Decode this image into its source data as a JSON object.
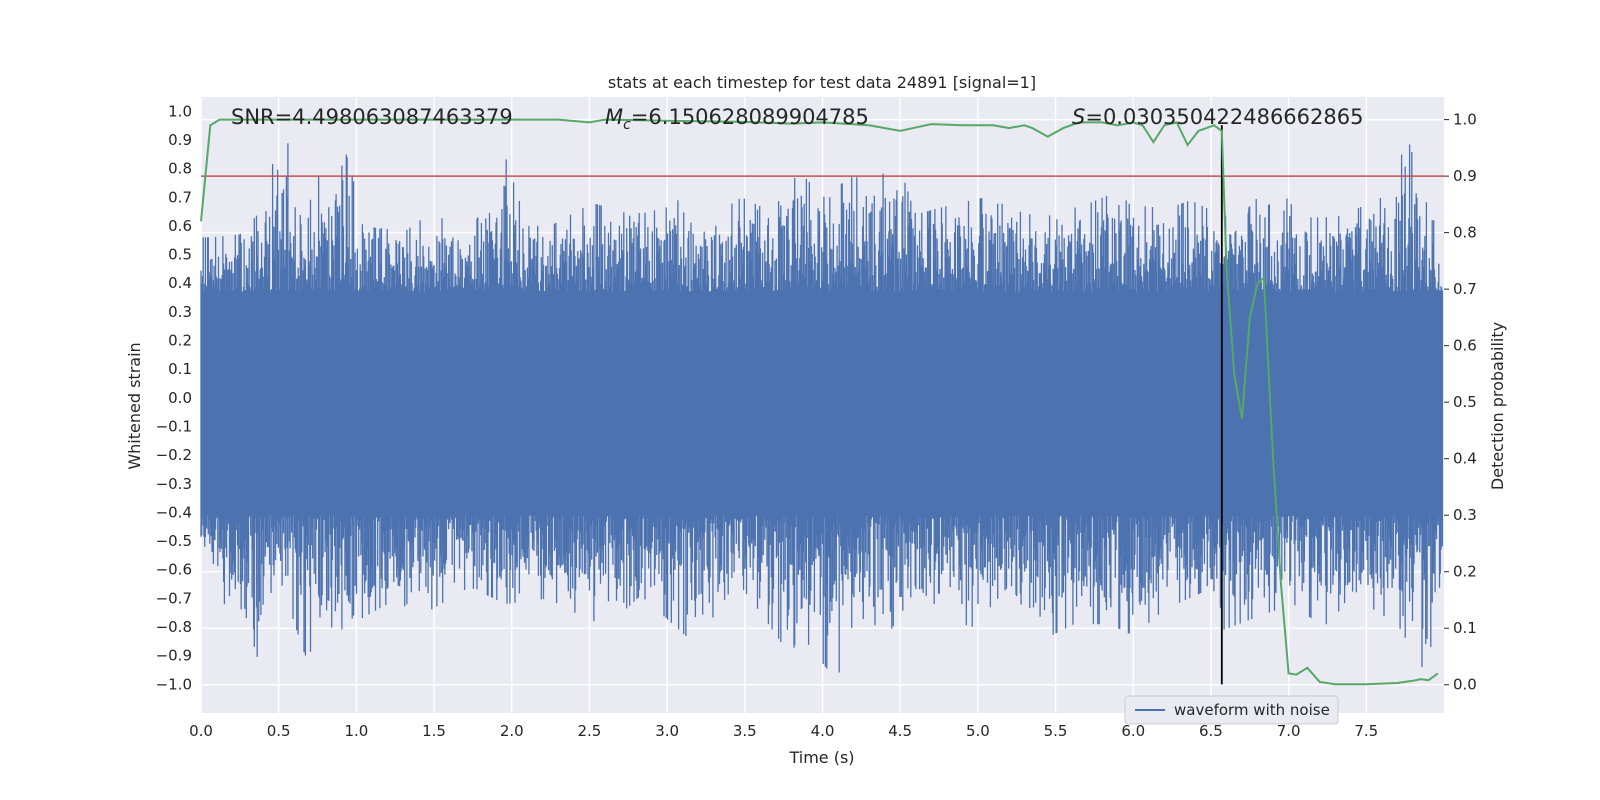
{
  "chart_data": {
    "type": "line",
    "title": "stats at each timestep for test data 24891 [signal=1]",
    "xlabel": "Time (s)",
    "ylabel_left": "Whitened strain",
    "ylabel_right": "Detection probability",
    "xlim": [
      0.0,
      8.0
    ],
    "ylim_left": [
      -1.1,
      1.05
    ],
    "ylim_right": [
      -0.05,
      1.04
    ],
    "x_ticks": [
      "0.0",
      "0.5",
      "1.0",
      "1.5",
      "2.0",
      "2.5",
      "3.0",
      "3.5",
      "4.0",
      "4.5",
      "5.0",
      "5.5",
      "6.0",
      "6.5",
      "7.0",
      "7.5"
    ],
    "y_ticks_left": [
      "1.0",
      "0.9",
      "0.8",
      "0.7",
      "0.6",
      "0.5",
      "0.4",
      "0.3",
      "0.2",
      "0.1",
      "0.0",
      "-0.1",
      "-0.2",
      "-0.3",
      "-0.4",
      "-0.5",
      "-0.6",
      "-0.7",
      "-0.8",
      "-0.9",
      "-1.0"
    ],
    "y_ticks_right": [
      "1.0",
      "0.9",
      "0.8",
      "0.7",
      "0.6",
      "0.5",
      "0.4",
      "0.3",
      "0.2",
      "0.1",
      "0.0"
    ],
    "annotations": {
      "snr": "SNR=4.498063087463379",
      "mc_symbol": "M",
      "mc_sub": "c",
      "mc_value": "=6.150628089904785",
      "s_symbol": "S",
      "s_value": "=0.030350422486662865"
    },
    "legend": {
      "label": "waveform with noise",
      "location": "lower-right"
    },
    "threshold": {
      "axis": "right",
      "value": 0.9,
      "color": "#c44e52"
    },
    "event_marker": {
      "x": 6.57,
      "ymin": -1.0,
      "ymax": 0.99,
      "color": "#000000"
    },
    "waveform": {
      "name": "waveform with noise",
      "color": "#4c72b0",
      "envelope_upper": [
        [
          0.05,
          0.56
        ],
        [
          0.25,
          0.57
        ],
        [
          0.38,
          0.65
        ],
        [
          0.54,
          0.98
        ],
        [
          0.62,
          0.6
        ],
        [
          0.73,
          0.82
        ],
        [
          0.85,
          0.62
        ],
        [
          0.91,
          0.9
        ],
        [
          1.06,
          0.6
        ],
        [
          1.31,
          0.58
        ],
        [
          1.46,
          0.64
        ],
        [
          1.6,
          0.62
        ],
        [
          1.73,
          0.57
        ],
        [
          1.96,
          0.84
        ],
        [
          2.1,
          0.6
        ],
        [
          2.25,
          0.6
        ],
        [
          2.38,
          0.64
        ],
        [
          2.52,
          0.68
        ],
        [
          2.77,
          0.64
        ],
        [
          2.98,
          0.66
        ],
        [
          3.1,
          0.7
        ],
        [
          3.25,
          0.62
        ],
        [
          3.48,
          0.7
        ],
        [
          3.67,
          0.65
        ],
        [
          3.85,
          0.79
        ],
        [
          4.03,
          0.69
        ],
        [
          4.16,
          0.77
        ],
        [
          4.31,
          0.77
        ],
        [
          4.5,
          0.8
        ],
        [
          4.6,
          0.64
        ],
        [
          4.73,
          0.66
        ],
        [
          4.88,
          0.68
        ],
        [
          5.05,
          0.7
        ],
        [
          5.19,
          0.67
        ],
        [
          5.27,
          0.65
        ],
        [
          5.42,
          0.63
        ],
        [
          5.6,
          0.66
        ],
        [
          5.72,
          0.68
        ],
        [
          5.85,
          0.71
        ],
        [
          6.05,
          0.67
        ],
        [
          6.22,
          0.66
        ],
        [
          6.37,
          0.69
        ],
        [
          6.48,
          0.66
        ],
        [
          6.67,
          0.62
        ],
        [
          6.9,
          0.76
        ],
        [
          7.08,
          0.63
        ],
        [
          7.24,
          0.63
        ],
        [
          7.4,
          0.65
        ],
        [
          7.6,
          0.7
        ],
        [
          7.77,
          0.9
        ],
        [
          7.92,
          0.62
        ]
      ],
      "envelope_lower": [
        [
          0.05,
          -0.52
        ],
        [
          0.15,
          -0.72
        ],
        [
          0.38,
          -0.92
        ],
        [
          0.5,
          -0.62
        ],
        [
          0.67,
          -0.9
        ],
        [
          0.87,
          -0.82
        ],
        [
          1.0,
          -0.78
        ],
        [
          1.2,
          -0.72
        ],
        [
          1.48,
          -0.74
        ],
        [
          1.73,
          -0.66
        ],
        [
          1.96,
          -0.72
        ],
        [
          2.23,
          -0.7
        ],
        [
          2.51,
          -0.78
        ],
        [
          2.65,
          -0.78
        ],
        [
          2.83,
          -0.69
        ],
        [
          3.18,
          -0.86
        ],
        [
          3.45,
          -0.64
        ],
        [
          3.6,
          -0.75
        ],
        [
          3.78,
          -0.89
        ],
        [
          3.88,
          -0.84
        ],
        [
          4.09,
          -0.99
        ],
        [
          4.22,
          -0.76
        ],
        [
          4.43,
          -0.82
        ],
        [
          4.61,
          -0.66
        ],
        [
          4.83,
          -0.78
        ],
        [
          4.97,
          -0.8
        ],
        [
          5.21,
          -0.65
        ],
        [
          5.4,
          -0.85
        ],
        [
          5.62,
          -0.79
        ],
        [
          5.85,
          -0.79
        ],
        [
          6.0,
          -0.83
        ],
        [
          6.2,
          -0.74
        ],
        [
          6.44,
          -0.68
        ],
        [
          6.58,
          -0.81
        ],
        [
          6.82,
          -0.76
        ],
        [
          7.03,
          -0.72
        ],
        [
          7.24,
          -0.81
        ],
        [
          7.42,
          -0.67
        ],
        [
          7.55,
          -0.74
        ],
        [
          7.7,
          -0.79
        ],
        [
          7.88,
          -0.96
        ],
        [
          7.98,
          -0.7
        ]
      ],
      "dense_band": [
        -0.41,
        0.37
      ]
    },
    "probability": {
      "name": "detection probability",
      "color": "#55a868",
      "x": [
        0.0,
        0.06,
        0.12,
        0.25,
        0.5,
        1.0,
        1.5,
        2.0,
        2.3,
        2.5,
        2.6,
        3.0,
        3.5,
        3.8,
        4.0,
        4.3,
        4.5,
        4.7,
        4.9,
        5.1,
        5.2,
        5.3,
        5.35,
        5.45,
        5.55,
        5.65,
        5.8,
        5.9,
        6.0,
        6.06,
        6.13,
        6.2,
        6.28,
        6.35,
        6.42,
        6.52,
        6.57,
        6.6,
        6.65,
        6.7,
        6.75,
        6.8,
        6.84,
        6.9,
        6.95,
        7.0,
        7.05,
        7.12,
        7.2,
        7.3,
        7.5,
        7.7,
        7.8,
        7.85,
        7.9,
        7.96
      ],
      "y": [
        0.82,
        0.99,
        1.0,
        1.0,
        1.0,
        1.0,
        1.0,
        1.0,
        1.0,
        0.995,
        1.0,
        0.998,
        0.996,
        0.993,
        0.995,
        0.99,
        0.98,
        0.992,
        0.99,
        0.99,
        0.985,
        0.99,
        0.985,
        0.97,
        0.985,
        0.995,
        0.995,
        0.99,
        0.995,
        0.99,
        0.96,
        0.99,
        0.995,
        0.955,
        0.98,
        0.99,
        0.98,
        0.74,
        0.55,
        0.47,
        0.65,
        0.71,
        0.72,
        0.4,
        0.18,
        0.02,
        0.018,
        0.03,
        0.005,
        0.001,
        0.001,
        0.003,
        0.007,
        0.01,
        0.008,
        0.02
      ]
    }
  }
}
